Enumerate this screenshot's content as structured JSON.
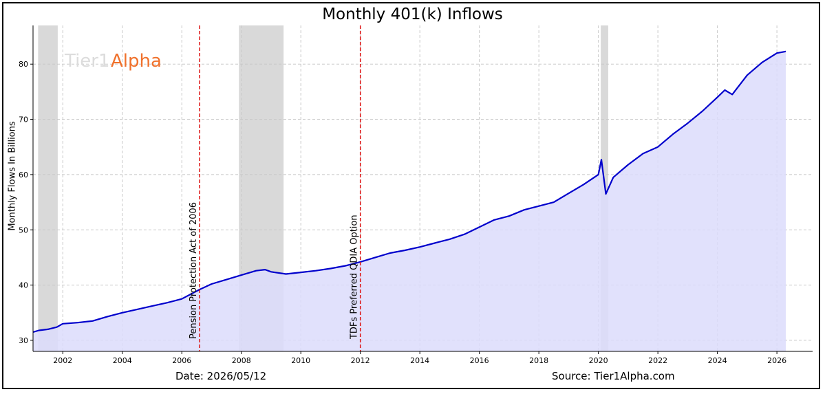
{
  "chart_data": {
    "type": "area",
    "title": "Monthly 401(k) Inflows",
    "ylabel": "Monthly Flows In Billions",
    "xlabel": "",
    "xlim": [
      2001.0,
      2027.2
    ],
    "ylim": [
      28,
      87
    ],
    "grid": true,
    "x_ticks": [
      2002,
      2004,
      2006,
      2008,
      2010,
      2012,
      2014,
      2016,
      2018,
      2020,
      2022,
      2024,
      2026
    ],
    "y_ticks": [
      30,
      40,
      50,
      60,
      70,
      80
    ],
    "recessions": [
      [
        2001.17,
        2001.83
      ],
      [
        2007.92,
        2009.42
      ],
      [
        2020.08,
        2020.33
      ]
    ],
    "events": [
      {
        "x": 2006.6,
        "label": "Pension Protection Act of 2006"
      },
      {
        "x": 2012.0,
        "label": "TDFs Preferred QDIA Option"
      }
    ],
    "series": [
      {
        "values_x": [
          2001.0,
          2001.2,
          2001.5,
          2001.8,
          2002.0,
          2002.5,
          2003.0,
          2003.5,
          2004.0,
          2004.5,
          2005.0,
          2005.5,
          2006.0,
          2006.6,
          2007.0,
          2007.5,
          2008.0,
          2008.5,
          2008.8,
          2009.0,
          2009.5,
          2010.0,
          2010.5,
          2011.0,
          2011.5,
          2012.0,
          2012.5,
          2013.0,
          2013.5,
          2014.0,
          2014.5,
          2015.0,
          2015.5,
          2016.0,
          2016.5,
          2017.0,
          2017.5,
          2018.0,
          2018.5,
          2019.0,
          2019.5,
          2020.0,
          2020.1,
          2020.25,
          2020.5,
          2021.0,
          2021.5,
          2022.0,
          2022.5,
          2023.0,
          2023.5,
          2024.0,
          2024.25,
          2024.5,
          2025.0,
          2025.5,
          2026.0,
          2026.3
        ],
        "values": [
          31.5,
          31.8,
          32.0,
          32.4,
          33.0,
          33.2,
          33.5,
          34.3,
          35.0,
          35.6,
          36.2,
          36.8,
          37.5,
          39.2,
          40.2,
          41.0,
          41.8,
          42.6,
          42.8,
          42.4,
          42.0,
          42.3,
          42.6,
          43.0,
          43.5,
          44.2,
          45.0,
          45.8,
          46.3,
          46.9,
          47.6,
          48.3,
          49.2,
          50.5,
          51.8,
          52.5,
          53.6,
          54.3,
          55.0,
          56.6,
          58.2,
          60.0,
          62.7,
          56.5,
          59.5,
          61.8,
          63.8,
          65.0,
          67.3,
          69.3,
          71.5,
          74.0,
          75.3,
          74.5,
          78.0,
          80.3,
          82.0,
          82.3
        ]
      }
    ],
    "colors": {
      "line": "#0000cc",
      "fill": "#dcdcfb",
      "recession": "#d9d9d9",
      "event_line": "#dd1111",
      "grid": "#c8c8c8"
    }
  },
  "watermark": {
    "part1": "Tier1",
    "part2": "Alpha"
  },
  "footer": {
    "date": "Date: 2026/05/12",
    "source": "Source: Tier1Alpha.com"
  }
}
